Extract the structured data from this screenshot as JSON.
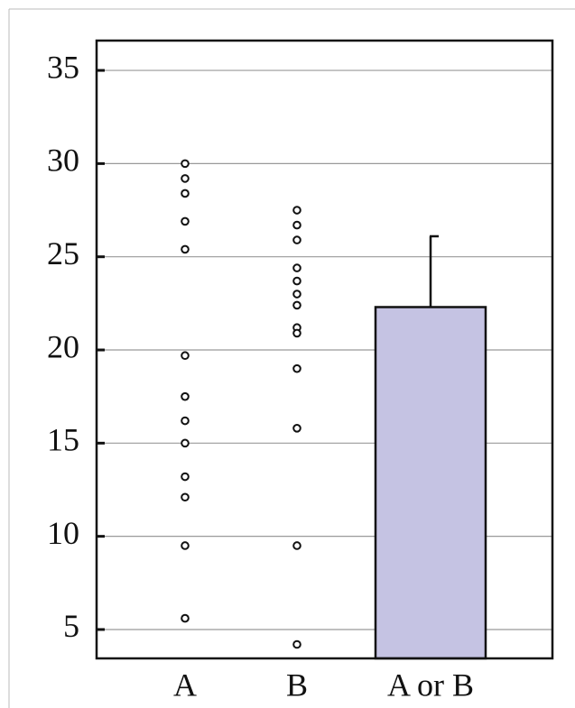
{
  "chart_data": {
    "type": "bar",
    "ylim": [
      3.45,
      36.6
    ],
    "yticks": [
      5,
      10,
      15,
      20,
      25,
      30,
      35
    ],
    "grid": true,
    "series": [
      {
        "name": "A",
        "type": "scatter",
        "values": [
          30,
          29.2,
          28.4,
          26.9,
          25.4,
          19.7,
          17.5,
          16.2,
          15.0,
          13.2,
          12.1,
          9.5,
          5.6
        ]
      },
      {
        "name": "B",
        "type": "scatter",
        "values": [
          27.5,
          26.7,
          25.9,
          24.4,
          23.7,
          23.0,
          22.4,
          21.2,
          20.9,
          19.0,
          15.8,
          9.5,
          4.2
        ]
      },
      {
        "name": "A or B",
        "type": "bar",
        "color": "#c5c3e3",
        "values": [
          22.3
        ],
        "errors": [
          3.8
        ]
      }
    ]
  }
}
